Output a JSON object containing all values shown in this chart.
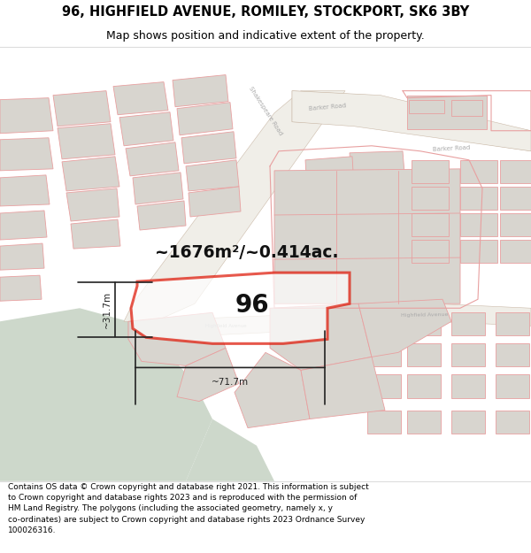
{
  "title_line1": "96, HIGHFIELD AVENUE, ROMILEY, STOCKPORT, SK6 3BY",
  "title_line2": "Map shows position and indicative extent of the property.",
  "area_text": "~1676m²/~0.414ac.",
  "number_text": "96",
  "dim_horizontal": "~71.7m",
  "dim_vertical": "~31.7m",
  "footer_text": "Contains OS data © Crown copyright and database right 2021. This information is subject to Crown copyright and database rights 2023 and is reproduced with the permission of HM Land Registry. The polygons (including the associated geometry, namely x, y co-ordinates) are subject to Crown copyright and database rights 2023 Ordnance Survey 100026316.",
  "map_bg": "#f7f5f2",
  "green_color": "#cdd8cb",
  "white_road": "#f0eee8",
  "building_color": "#d8d5cf",
  "cadastral_color": "#e8a0a0",
  "highlight_color": "#dd1100",
  "dim_color": "#222222",
  "title_bg": "#ffffff",
  "footer_bg": "#ffffff",
  "road_label_color": "#999999"
}
